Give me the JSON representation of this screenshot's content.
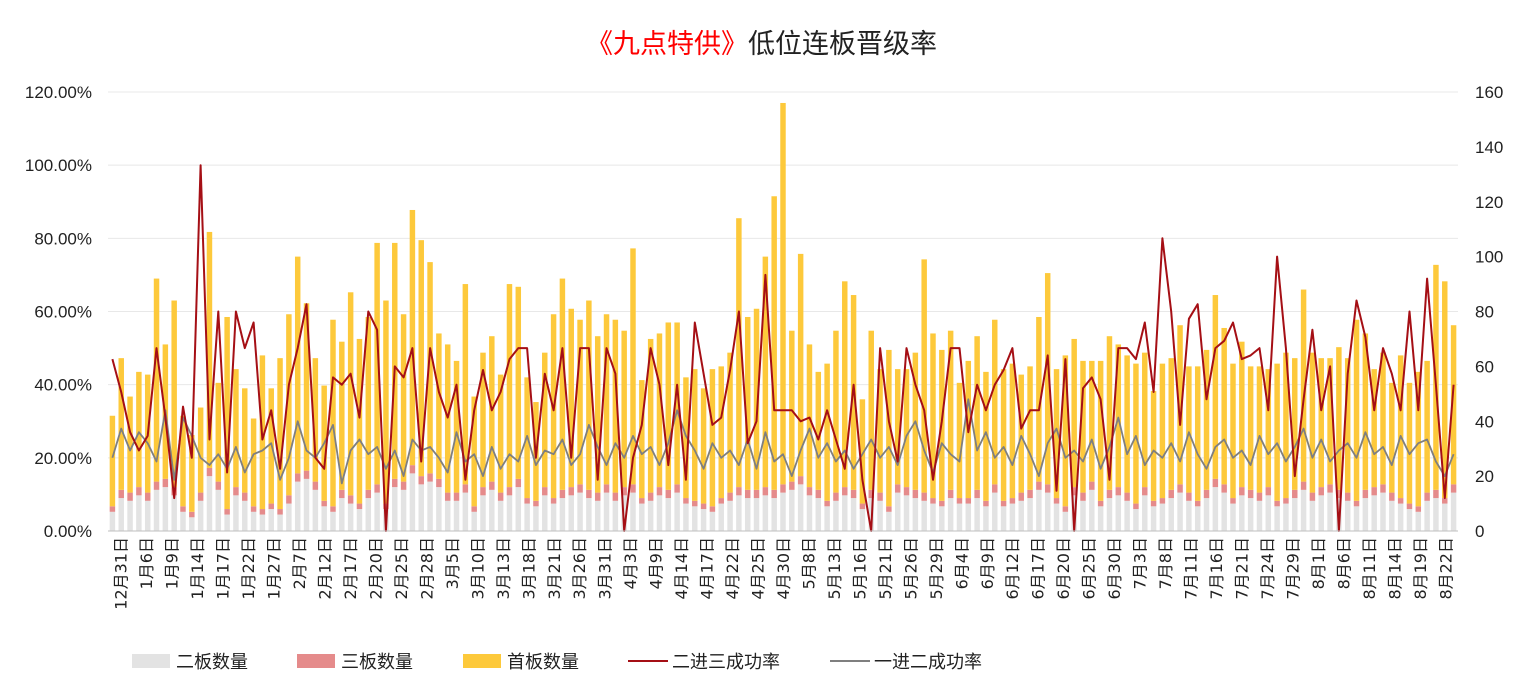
{
  "chart_data": {
    "type": "bar",
    "title_part1": "《九点特供》",
    "title_part2": "低位连板晋级率",
    "left_axis": {
      "ticks": [
        "0.00%",
        "20.00%",
        "40.00%",
        "60.00%",
        "80.00%",
        "100.00%",
        "120.00%"
      ],
      "range": [
        0,
        1.2
      ]
    },
    "right_axis": {
      "ticks": [
        "0",
        "20",
        "40",
        "60",
        "80",
        "100",
        "120",
        "140",
        "160"
      ],
      "range": [
        0,
        160
      ]
    },
    "x_tick_labels": [
      "12月31日",
      "1月6日",
      "1月9日",
      "1月14日",
      "1月17日",
      "1月22日",
      "1月27日",
      "2月7日",
      "2月12日",
      "2月17日",
      "2月20日",
      "2月25日",
      "2月28日",
      "3月5日",
      "3月10日",
      "3月13日",
      "3月18日",
      "3月21日",
      "3月26日",
      "3月31日",
      "4月3日",
      "4月9日",
      "4月14日",
      "4月17日",
      "4月22日",
      "4月25日",
      "4月30日",
      "5月8日",
      "5月13日",
      "5月16日",
      "5月21日",
      "5月26日",
      "5月29日",
      "6月4日",
      "6月9日",
      "6月12日",
      "6月17日",
      "6月20日",
      "6月25日",
      "6月30日",
      "7月3日",
      "7月8日",
      "7月11日",
      "7月16日",
      "7月21日",
      "7月24日",
      "7月29日",
      "8月1日",
      "8月6日",
      "8月11日",
      "8月14日",
      "8月19日",
      "8月22日"
    ],
    "legend": [
      {
        "label": "二板数量",
        "kind": "bar",
        "color": "#e3e3e3"
      },
      {
        "label": "三板数量",
        "kind": "bar",
        "color": "#e58b8b"
      },
      {
        "label": "首板数量",
        "kind": "bar",
        "color": "#fdc93b"
      },
      {
        "label": "二进三成功率",
        "kind": "line",
        "color": "#a50f15"
      },
      {
        "label": "一进二成功率",
        "kind": "line",
        "color": "#7f7f7f"
      }
    ],
    "colors": {
      "second_board": "#e3e3e3",
      "third_board": "#e58b8b",
      "first_board": "#fdc93b",
      "rate_2to3": "#a50f15",
      "rate_1to2": "#7f7f7f",
      "grid": "#e8e8e8"
    },
    "series": {
      "二板数量": [
        7,
        12,
        11,
        13,
        11,
        15,
        16,
        13,
        7,
        5,
        11,
        20,
        15,
        6,
        13,
        11,
        7,
        6,
        8,
        6,
        10,
        18,
        19,
        15,
        9,
        7,
        12,
        10,
        8,
        12,
        14,
        8,
        16,
        15,
        21,
        17,
        18,
        16,
        11,
        11,
        14,
        7,
        13,
        15,
        11,
        13,
        16,
        10,
        9,
        13,
        10,
        12,
        13,
        14,
        12,
        11,
        14,
        11,
        13,
        14,
        10,
        11,
        13,
        12,
        14,
        10,
        9,
        8,
        7,
        10,
        11,
        13,
        12,
        12,
        13,
        12,
        14,
        15,
        17,
        13,
        12,
        9,
        11,
        13,
        12,
        8,
        12,
        11,
        7,
        14,
        13,
        12,
        11,
        10,
        9,
        12,
        10,
        10,
        12,
        9,
        14,
        9,
        10,
        11,
        12,
        15,
        14,
        10,
        7,
        13,
        11,
        15,
        9,
        12,
        13,
        11,
        8,
        13,
        9,
        10,
        12,
        14,
        11,
        9,
        12,
        16,
        14,
        10,
        13,
        12,
        11,
        13,
        9,
        10,
        12,
        15,
        11,
        13,
        14,
        12,
        11,
        9,
        12,
        13,
        14,
        11,
        10,
        8,
        7,
        11,
        12,
        10,
        14
      ],
      "三板数量": [
        2,
        3,
        3,
        3,
        3,
        3,
        3,
        3,
        2,
        2,
        3,
        3,
        3,
        2,
        3,
        3,
        2,
        2,
        2,
        2,
        3,
        3,
        3,
        3,
        2,
        2,
        3,
        3,
        2,
        3,
        3,
        2,
        3,
        3,
        3,
        3,
        3,
        3,
        3,
        3,
        3,
        2,
        3,
        3,
        3,
        3,
        3,
        2,
        2,
        3,
        2,
        3,
        3,
        3,
        3,
        3,
        3,
        3,
        3,
        3,
        2,
        3,
        3,
        3,
        3,
        2,
        2,
        2,
        2,
        2,
        3,
        3,
        3,
        3,
        3,
        3,
        3,
        3,
        3,
        3,
        3,
        2,
        3,
        3,
        3,
        2,
        3,
        3,
        2,
        3,
        3,
        3,
        3,
        2,
        2,
        3,
        2,
        2,
        3,
        2,
        3,
        2,
        2,
        3,
        3,
        3,
        3,
        2,
        2,
        3,
        3,
        3,
        2,
        3,
        3,
        3,
        2,
        3,
        2,
        2,
        3,
        3,
        3,
        2,
        3,
        3,
        3,
        2,
        3,
        3,
        3,
        3,
        2,
        2,
        3,
        3,
        3,
        3,
        3,
        3,
        3,
        2,
        3,
        3,
        3,
        3,
        2,
        2,
        2,
        3,
        3,
        2,
        3
      ],
      "首板数量": [
        33,
        48,
        35,
        42,
        43,
        74,
        49,
        68,
        33,
        28,
        31,
        86,
        36,
        70,
        43,
        38,
        32,
        56,
        42,
        55,
        66,
        79,
        61,
        45,
        42,
        68,
        54,
        74,
        60,
        63,
        88,
        74,
        86,
        61,
        93,
        86,
        77,
        53,
        54,
        48,
        73,
        40,
        49,
        53,
        43,
        74,
        70,
        44,
        36,
        49,
        67,
        77,
        65,
        60,
        69,
        57,
        62,
        63,
        57,
        86,
        43,
        56,
        56,
        61,
        59,
        44,
        48,
        42,
        50,
        48,
        51,
        98,
        63,
        66,
        84,
        107,
        139,
        55,
        81,
        52,
        43,
        50,
        59,
        75,
        71,
        38,
        58,
        45,
        57,
        42,
        43,
        50,
        85,
        60,
        55,
        58,
        42,
        50,
        56,
        47,
        60,
        48,
        49,
        43,
        45,
        60,
        77,
        47,
        55,
        54,
        48,
        44,
        51,
        56,
        52,
        50,
        51,
        49,
        40,
        49,
        48,
        58,
        46,
        49,
        51,
        67,
        57,
        49,
        53,
        45,
        46,
        43,
        50,
        53,
        48,
        70,
        51,
        47,
        46,
        52,
        49,
        66,
        57,
        43,
        48,
        40,
        52,
        44,
        49,
        48,
        82,
        79,
        58
      ],
      "二进三成功率": [
        0.47,
        0.38,
        0.27,
        0.22,
        0.26,
        0.5,
        0.31,
        0.09,
        0.34,
        0.2,
        1.0,
        0.25,
        0.6,
        0.16,
        0.6,
        0.5,
        0.57,
        0.25,
        0.33,
        0.17,
        0.4,
        0.5,
        0.62,
        0.2,
        0.17,
        0.42,
        0.4,
        0.43,
        0.31,
        0.6,
        0.55,
        0.0,
        0.45,
        0.42,
        0.5,
        0.19,
        0.5,
        0.38,
        0.31,
        0.4,
        0.14,
        0.33,
        0.44,
        0.33,
        0.38,
        0.47,
        0.5,
        0.5,
        0.2,
        0.43,
        0.33,
        0.5,
        0.2,
        0.5,
        0.5,
        0.14,
        0.5,
        0.43,
        0.0,
        0.2,
        0.29,
        0.5,
        0.4,
        0.18,
        0.4,
        0.14,
        0.57,
        0.43,
        0.29,
        0.31,
        0.44,
        0.6,
        0.24,
        0.3,
        0.7,
        0.33,
        0.33,
        0.33,
        0.3,
        0.31,
        0.25,
        0.33,
        0.25,
        0.17,
        0.4,
        0.14,
        0.0,
        0.5,
        0.3,
        0.19,
        0.5,
        0.4,
        0.33,
        0.14,
        0.3,
        0.5,
        0.5,
        0.27,
        0.4,
        0.33,
        0.4,
        0.44,
        0.5,
        0.28,
        0.33,
        0.33,
        0.48,
        0.11,
        0.47,
        0.0,
        0.39,
        0.42,
        0.36,
        0.14,
        0.5,
        0.5,
        0.47,
        0.57,
        0.38,
        0.8,
        0.6,
        0.29,
        0.58,
        0.62,
        0.36,
        0.5,
        0.52,
        0.57,
        0.47,
        0.48,
        0.5,
        0.33,
        0.75,
        0.5,
        0.15,
        0.36,
        0.55,
        0.33,
        0.45,
        0.0,
        0.43,
        0.63,
        0.53,
        0.33,
        0.5,
        0.43,
        0.33,
        0.6,
        0.33,
        0.69,
        0.4,
        0.09,
        0.4
      ],
      "一进二成功率": [
        0.2,
        0.28,
        0.22,
        0.27,
        0.24,
        0.19,
        0.33,
        0.14,
        0.31,
        0.26,
        0.2,
        0.18,
        0.21,
        0.17,
        0.23,
        0.16,
        0.21,
        0.22,
        0.24,
        0.14,
        0.2,
        0.3,
        0.22,
        0.2,
        0.24,
        0.29,
        0.13,
        0.22,
        0.25,
        0.21,
        0.23,
        0.17,
        0.22,
        0.15,
        0.25,
        0.22,
        0.23,
        0.2,
        0.16,
        0.27,
        0.19,
        0.21,
        0.15,
        0.23,
        0.17,
        0.21,
        0.19,
        0.26,
        0.18,
        0.22,
        0.21,
        0.25,
        0.18,
        0.21,
        0.29,
        0.23,
        0.18,
        0.24,
        0.2,
        0.26,
        0.21,
        0.23,
        0.18,
        0.24,
        0.33,
        0.26,
        0.22,
        0.17,
        0.24,
        0.2,
        0.22,
        0.18,
        0.25,
        0.17,
        0.27,
        0.19,
        0.21,
        0.15,
        0.22,
        0.28,
        0.2,
        0.24,
        0.19,
        0.22,
        0.17,
        0.21,
        0.25,
        0.2,
        0.23,
        0.18,
        0.26,
        0.3,
        0.22,
        0.16,
        0.24,
        0.21,
        0.19,
        0.36,
        0.22,
        0.27,
        0.2,
        0.23,
        0.18,
        0.26,
        0.21,
        0.15,
        0.24,
        0.28,
        0.2,
        0.22,
        0.19,
        0.25,
        0.17,
        0.23,
        0.31,
        0.21,
        0.26,
        0.18,
        0.22,
        0.2,
        0.24,
        0.19,
        0.27,
        0.21,
        0.17,
        0.23,
        0.25,
        0.2,
        0.22,
        0.18,
        0.26,
        0.21,
        0.24,
        0.19,
        0.23,
        0.28,
        0.2,
        0.25,
        0.19,
        0.22,
        0.24,
        0.2,
        0.27,
        0.21,
        0.23,
        0.18,
        0.26,
        0.21,
        0.24,
        0.25,
        0.19,
        0.15,
        0.21
      ]
    }
  }
}
